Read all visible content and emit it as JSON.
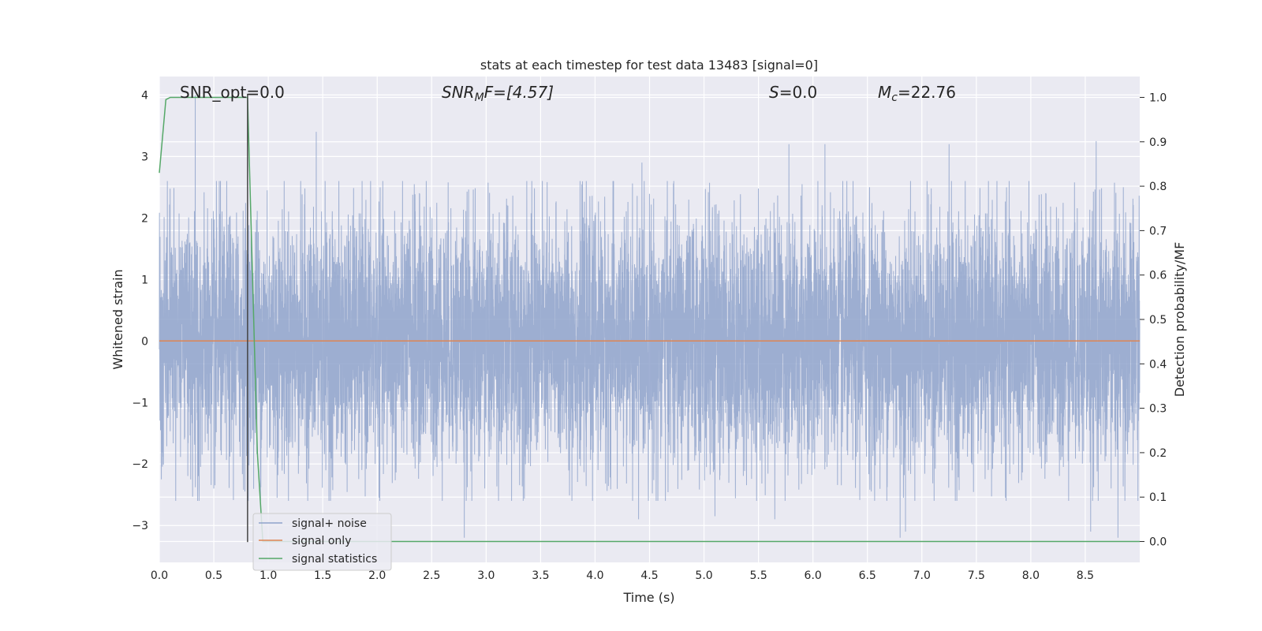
{
  "chart_data": {
    "type": "line",
    "title": "stats at each timestep for test data 13483 [signal=0]",
    "xlabel": "Time (s)",
    "ylabel": "Whitened strain",
    "y2label": "Detection probability/MF",
    "xlim": [
      0.0,
      9.0
    ],
    "ylim": [
      -3.6,
      4.3
    ],
    "y2lim": [
      -0.047,
      1.047
    ],
    "xticks": [
      0.0,
      0.5,
      1.0,
      1.5,
      2.0,
      2.5,
      3.0,
      3.5,
      4.0,
      4.5,
      5.0,
      5.5,
      6.0,
      6.5,
      7.0,
      7.5,
      8.0,
      8.5
    ],
    "xtick_labels": [
      "0.0",
      "0.5",
      "1.0",
      "1.5",
      "2.0",
      "2.5",
      "3.0",
      "3.5",
      "4.0",
      "4.5",
      "5.0",
      "5.5",
      "6.0",
      "6.5",
      "7.0",
      "7.5",
      "8.0",
      "8.5"
    ],
    "yticks": [
      -3,
      -2,
      -1,
      0,
      1,
      2,
      3,
      4
    ],
    "ytick_labels": [
      "−3",
      "−2",
      "−1",
      "0",
      "1",
      "2",
      "3",
      "4"
    ],
    "y2ticks": [
      0.0,
      0.1,
      0.2,
      0.3,
      0.4,
      0.5,
      0.6,
      0.7,
      0.8,
      0.9,
      1.0
    ],
    "y2tick_labels": [
      "0.0",
      "0.1",
      "0.2",
      "0.3",
      "0.4",
      "0.5",
      "0.6",
      "0.7",
      "0.8",
      "0.9",
      "1.0"
    ],
    "grid": true,
    "legend_position": "bottom-left",
    "annotations": {
      "snr_opt": "SNR_opt=0.0",
      "snr_mf_main": "SNR",
      "snr_mf_sub": "M",
      "snr_mf_rest": "F=[4.57]",
      "s_main": "S",
      "s_rest": "=0.0",
      "mc_main": "M",
      "mc_sub": "c",
      "mc_rest": "=22.76"
    },
    "marker_line": {
      "x": 0.81,
      "y_range": [
        -3.27,
        4.02
      ],
      "color": "#444444"
    },
    "series": [
      {
        "name": "signal+ noise",
        "color": "#8fa3cb",
        "kind": "noise",
        "samples": 8192,
        "std": 1.0,
        "x_range": [
          0.0,
          9.0
        ],
        "peak_times": [
          0.33,
          0.55,
          0.99,
          1.44,
          2.34,
          2.45,
          3.2,
          4.43,
          5.78,
          5.9,
          6.11,
          6.52,
          7.25,
          8.6,
          8.85
        ],
        "peak_values": [
          4.0,
          2.6,
          2.45,
          3.4,
          2.55,
          2.6,
          2.2,
          2.9,
          3.2,
          2.55,
          3.2,
          2.5,
          3.2,
          3.25,
          2.5
        ],
        "trough_times": [
          0.5,
          2.8,
          4.4,
          5.1,
          5.65,
          6.8,
          6.85,
          8.55,
          8.8
        ],
        "trough_values": [
          -2.4,
          -3.2,
          -2.9,
          -2.85,
          -2.9,
          -3.2,
          -3.1,
          -3.1,
          -3.2
        ]
      },
      {
        "name": "signal only",
        "color": "#dd8452",
        "kind": "line",
        "x": [
          0.0,
          9.0
        ],
        "y": [
          0.0,
          0.0
        ]
      },
      {
        "name": "signal statistics",
        "color": "#55a868",
        "kind": "line",
        "axis": "right",
        "x": [
          0.0,
          0.06,
          0.1,
          0.15,
          0.3,
          0.5,
          0.7,
          0.8,
          0.81,
          0.9,
          0.95,
          1.0,
          2.0,
          3.0,
          4.0,
          5.0,
          6.0,
          7.0,
          8.0,
          9.0
        ],
        "y": [
          0.83,
          0.995,
          1.0,
          1.0,
          1.0,
          1.0,
          1.0,
          1.0,
          1.0,
          0.2,
          0.0,
          0.0,
          0.0,
          0.0,
          0.0,
          0.0,
          0.0,
          0.0,
          0.0,
          0.0
        ]
      }
    ]
  }
}
